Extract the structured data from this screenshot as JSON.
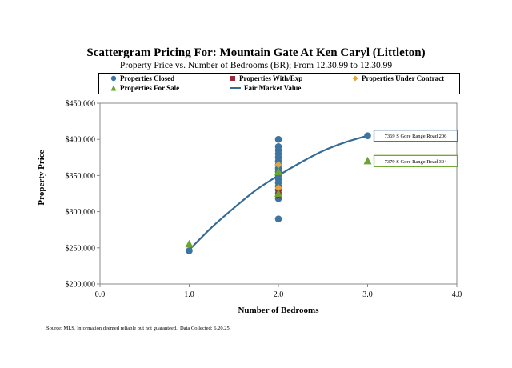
{
  "chart_data": {
    "type": "scatter",
    "title": "Scattergram Pricing For: Mountain Gate At Ken Caryl (Littleton)",
    "subtitle": "Property Price vs. Number of Bedrooms (BR); From 12.30.99 to 12.30.99",
    "xlabel": "Number of Bedrooms",
    "ylabel": "Property Price",
    "xlim": [
      0,
      4
    ],
    "ylim": [
      200000,
      450000
    ],
    "x_ticks": [
      0,
      1,
      2,
      3,
      4
    ],
    "x_tick_labels": [
      "0.0",
      "1.0",
      "2.0",
      "3.0",
      "4.0"
    ],
    "y_ticks": [
      200000,
      250000,
      300000,
      350000,
      400000,
      450000
    ],
    "y_tick_labels": [
      "$200,000",
      "$250,000",
      "$300,000",
      "$350,000",
      "$400,000",
      "$450,000"
    ],
    "grid": "none",
    "legend_position": "top",
    "series": [
      {
        "name": "Properties Closed",
        "marker": "circle",
        "color": "#3e74a0",
        "points": [
          [
            1,
            246000
          ],
          [
            2,
            400000
          ],
          [
            2,
            390000
          ],
          [
            2,
            385000
          ],
          [
            2,
            380000
          ],
          [
            2,
            375000
          ],
          [
            2,
            370000
          ],
          [
            2,
            365000
          ],
          [
            2,
            360000
          ],
          [
            2,
            355000
          ],
          [
            2,
            350000
          ],
          [
            2,
            345000
          ],
          [
            2,
            340000
          ],
          [
            2,
            335000
          ],
          [
            2,
            330000
          ],
          [
            2,
            325000
          ],
          [
            2,
            318000
          ],
          [
            2,
            290000
          ],
          [
            3,
            405000
          ]
        ]
      },
      {
        "name": "Properties With/Exp",
        "marker": "square",
        "color": "#9b2a3a",
        "points": [
          [
            2,
            327000
          ],
          [
            2,
            322000
          ]
        ]
      },
      {
        "name": "Properties Under Contract",
        "marker": "diamond",
        "color": "#e5a53d",
        "points": [
          [
            2,
            365000
          ],
          [
            2,
            333000
          ]
        ]
      },
      {
        "name": "Properties For Sale",
        "marker": "triangle",
        "color": "#6aa532",
        "points": [
          [
            1,
            255000
          ],
          [
            2,
            355000
          ],
          [
            2,
            325000
          ],
          [
            3,
            370000
          ]
        ]
      },
      {
        "name": "Fair Market Value",
        "marker": "line",
        "color": "#336b95",
        "curve": [
          [
            1,
            247000
          ],
          [
            1.25,
            278000
          ],
          [
            1.5,
            305000
          ],
          [
            1.75,
            330000
          ],
          [
            2,
            350000
          ],
          [
            2.25,
            368000
          ],
          [
            2.5,
            384000
          ],
          [
            2.75,
            396000
          ],
          [
            3,
            405000
          ]
        ]
      }
    ],
    "annotations": [
      {
        "text": "7369 S Gore Range Road 206",
        "x": 3,
        "y": 405000,
        "border_color": "#3e74a0"
      },
      {
        "text": "7379 S Gore Range Road 304",
        "x": 3,
        "y": 370000,
        "border_color": "#6aa532"
      }
    ]
  },
  "source": "Source: MLS, Information deemed reliable but not guaranteed., Data Collected: 6.20.25"
}
